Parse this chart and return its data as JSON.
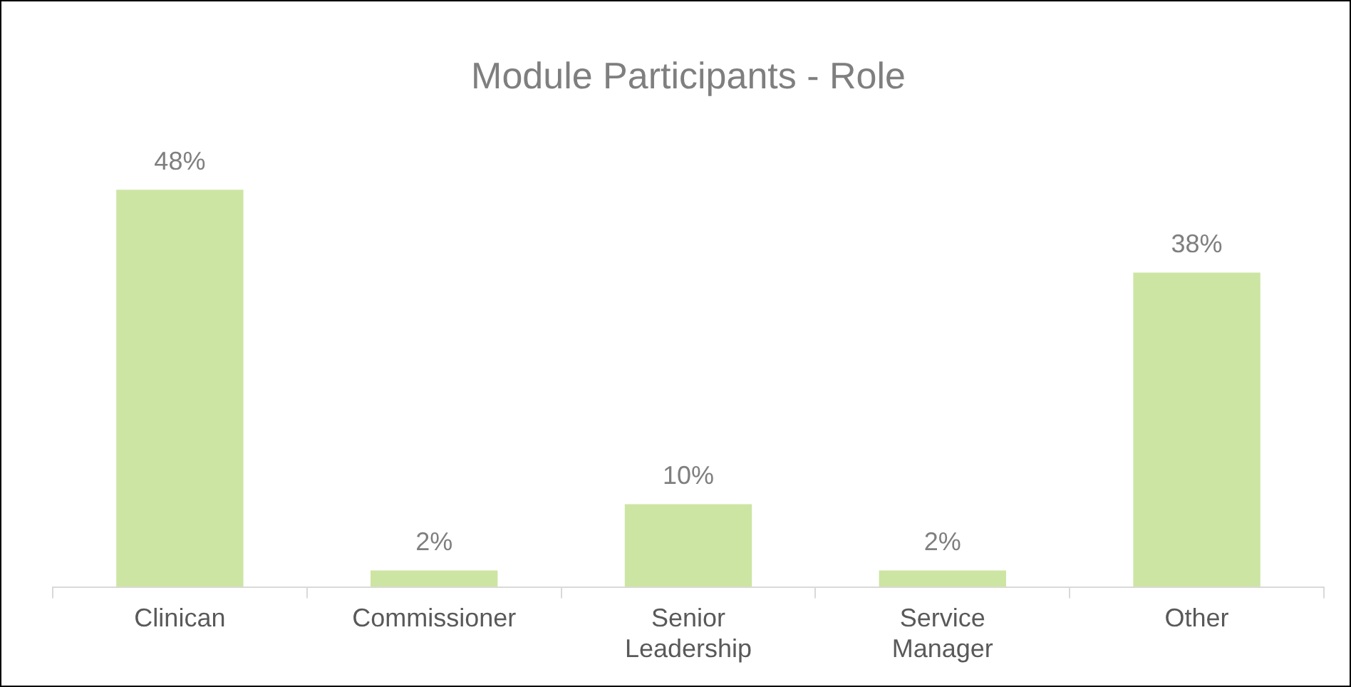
{
  "chart_data": {
    "type": "bar",
    "title": "Module Participants - Role",
    "categories": [
      "Clinican",
      "Commissioner",
      "Senior Leadership",
      "Service Manager",
      "Other"
    ],
    "values": [
      48,
      2,
      10,
      2,
      38
    ],
    "value_labels": [
      "48%",
      "2%",
      "10%",
      "2%",
      "38%"
    ],
    "color": "#cde5a3"
  }
}
